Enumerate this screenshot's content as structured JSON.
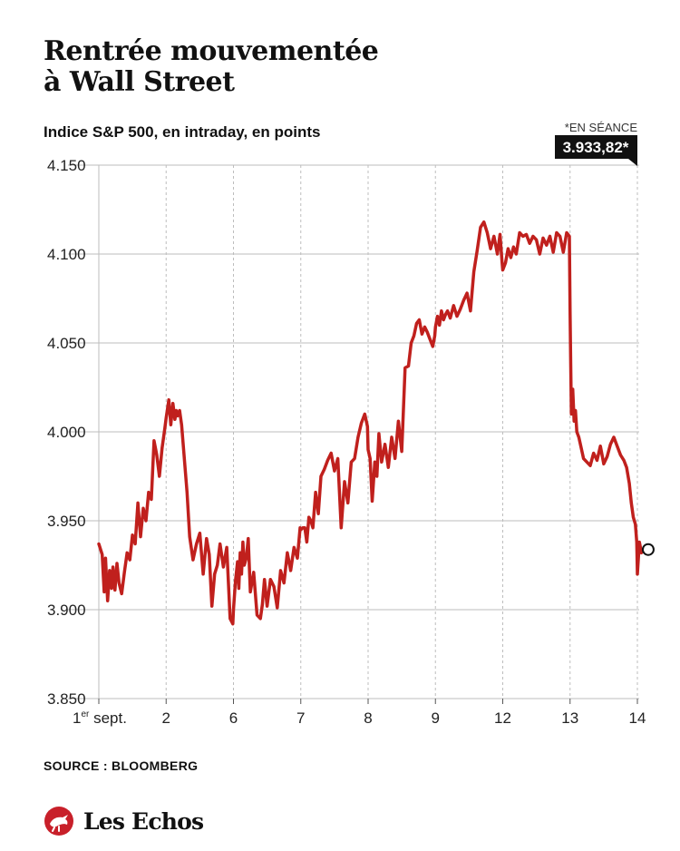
{
  "header": {
    "title_line1": "Rentrée mouvementée",
    "title_line2": "à Wall Street",
    "subtitle": "Indice S&P 500, en intraday, en points"
  },
  "footer": {
    "source": "SOURCE : BLOOMBERG",
    "brand": "Les Echos"
  },
  "colors": {
    "line": "#c0201d",
    "brand_red": "#c8202a",
    "grid": "#bdbdbd",
    "callout_bg": "#111111"
  },
  "chart_data": {
    "type": "line",
    "title": "Indice S&P 500, en intraday, en points",
    "xlabel": "",
    "ylabel": "",
    "ylim": [
      3850,
      4150
    ],
    "yticks": [
      3850,
      3900,
      3950,
      4000,
      4050,
      4100,
      4150
    ],
    "ytick_labels": [
      "3.850",
      "3.900",
      "3.950",
      "4.000",
      "4.050",
      "4.100",
      "4.150"
    ],
    "categories": [
      "1",
      "2",
      "6",
      "7",
      "8",
      "9",
      "12",
      "13",
      "14"
    ],
    "category_labels": [
      {
        "main": "1",
        "sup": "er",
        "rest": " sept."
      },
      {
        "main": "2",
        "sup": "",
        "rest": ""
      },
      {
        "main": "6",
        "sup": "",
        "rest": ""
      },
      {
        "main": "7",
        "sup": "",
        "rest": ""
      },
      {
        "main": "8",
        "sup": "",
        "rest": ""
      },
      {
        "main": "9",
        "sup": "",
        "rest": ""
      },
      {
        "main": "12",
        "sup": "",
        "rest": ""
      },
      {
        "main": "13",
        "sup": "",
        "rest": ""
      },
      {
        "main": "14",
        "sup": "",
        "rest": ""
      }
    ],
    "grid": true,
    "series": [
      {
        "x": [
          0,
          0.05,
          0.08,
          0.1,
          0.13,
          0.16,
          0.19,
          0.21,
          0.24,
          0.27,
          0.3,
          0.34,
          0.38,
          0.42,
          0.46,
          0.5,
          0.54,
          0.58,
          0.62,
          0.66,
          0.7,
          0.74,
          0.78,
          0.82,
          0.86,
          0.9,
          0.94,
          0.98,
          1.0,
          1.04,
          1.07,
          1.1,
          1.13,
          1.15,
          1.17,
          1.2,
          1.23,
          1.27,
          1.31,
          1.35,
          1.4,
          1.45,
          1.5,
          1.55,
          1.6,
          1.64,
          1.68,
          1.72,
          1.76,
          1.8,
          1.85,
          1.9,
          1.95,
          1.99,
          2.0,
          2.03,
          2.06,
          2.08,
          2.1,
          2.12,
          2.14,
          2.16,
          2.19,
          2.22,
          2.25,
          2.3,
          2.35,
          2.4,
          2.43,
          2.46,
          2.5,
          2.55,
          2.6,
          2.65,
          2.7,
          2.75,
          2.8,
          2.85,
          2.9,
          2.95,
          2.99,
          3.0,
          3.03,
          3.06,
          3.09,
          3.12,
          3.15,
          3.18,
          3.22,
          3.26,
          3.3,
          3.35,
          3.4,
          3.45,
          3.5,
          3.55,
          3.6,
          3.65,
          3.7,
          3.75,
          3.8,
          3.85,
          3.9,
          3.95,
          3.99,
          4.0,
          4.03,
          4.06,
          4.1,
          4.13,
          4.16,
          4.2,
          4.25,
          4.3,
          4.35,
          4.4,
          4.45,
          4.5,
          4.55,
          4.6,
          4.64,
          4.68,
          4.72,
          4.76,
          4.8,
          4.84,
          4.88,
          4.92,
          4.96,
          4.99,
          5.0,
          5.03,
          5.06,
          5.09,
          5.12,
          5.15,
          5.18,
          5.22,
          5.27,
          5.32,
          5.37,
          5.42,
          5.47,
          5.52,
          5.57,
          5.62,
          5.67,
          5.72,
          5.77,
          5.82,
          5.87,
          5.92,
          5.96,
          5.99,
          6.0,
          6.04,
          6.08,
          6.12,
          6.16,
          6.2,
          6.25,
          6.3,
          6.35,
          6.4,
          6.45,
          6.5,
          6.55,
          6.6,
          6.65,
          6.7,
          6.75,
          6.8,
          6.85,
          6.9,
          6.95,
          6.99,
          7.0,
          7.01,
          7.02,
          7.04,
          7.06,
          7.08,
          7.1,
          7.13,
          7.16,
          7.2,
          7.25,
          7.3,
          7.35,
          7.4,
          7.45,
          7.5,
          7.55,
          7.6,
          7.65,
          7.7,
          7.75,
          7.8,
          7.84,
          7.88,
          7.91,
          7.94,
          7.97,
          7.99,
          8.0,
          8.03,
          8.06,
          8.08
        ],
        "values": [
          3937,
          3931,
          3910,
          3929,
          3905,
          3922,
          3912,
          3924,
          3911,
          3926,
          3915,
          3909,
          3921,
          3932,
          3928,
          3942,
          3937,
          3960,
          3941,
          3957,
          3950,
          3966,
          3962,
          3995,
          3987,
          3975,
          3991,
          4002,
          4008,
          4018,
          4004,
          4016,
          4007,
          4012,
          4009,
          4012,
          4004,
          3985,
          3966,
          3941,
          3928,
          3937,
          3943,
          3920,
          3940,
          3931,
          3902,
          3920,
          3925,
          3937,
          3924,
          3935,
          3895,
          3892,
          3900,
          3916,
          3927,
          3912,
          3932,
          3920,
          3938,
          3925,
          3929,
          3940,
          3910,
          3921,
          3897,
          3895,
          3903,
          3917,
          3902,
          3917,
          3913,
          3901,
          3922,
          3915,
          3932,
          3922,
          3935,
          3929,
          3946,
          3945,
          3946,
          3946,
          3938,
          3952,
          3950,
          3946,
          3966,
          3954,
          3975,
          3979,
          3984,
          3988,
          3978,
          3985,
          3946,
          3972,
          3960,
          3983,
          3985,
          3997,
          4005,
          4010,
          4003,
          3990,
          3985,
          3961,
          3983,
          3975,
          3999,
          3983,
          3993,
          3980,
          3997,
          3985,
          4006,
          3989,
          4036,
          4037,
          4050,
          4054,
          4061,
          4063,
          4055,
          4059,
          4056,
          4052,
          4048,
          4054,
          4059,
          4065,
          4060,
          4068,
          4063,
          4066,
          4068,
          4064,
          4071,
          4065,
          4069,
          4074,
          4078,
          4068,
          4090,
          4102,
          4115,
          4118,
          4112,
          4103,
          4110,
          4100,
          4111,
          4095,
          4091,
          4095,
          4103,
          4098,
          4104,
          4100,
          4112,
          4110,
          4111,
          4106,
          4110,
          4108,
          4100,
          4109,
          4105,
          4110,
          4101,
          4112,
          4110,
          4101,
          4112,
          4110,
          4066,
          4037,
          4010,
          4024,
          4006,
          4012,
          4000,
          3997,
          3992,
          3985,
          3983,
          3981,
          3988,
          3984,
          3992,
          3982,
          3986,
          3993,
          3997,
          3992,
          3987,
          3984,
          3980,
          3971,
          3960,
          3952,
          3948,
          3938,
          3920,
          3938,
          3932,
          3933.82
        ]
      }
    ],
    "last_value_label": "3.933,82*",
    "last_value_note": "*EN SÉANCE"
  }
}
